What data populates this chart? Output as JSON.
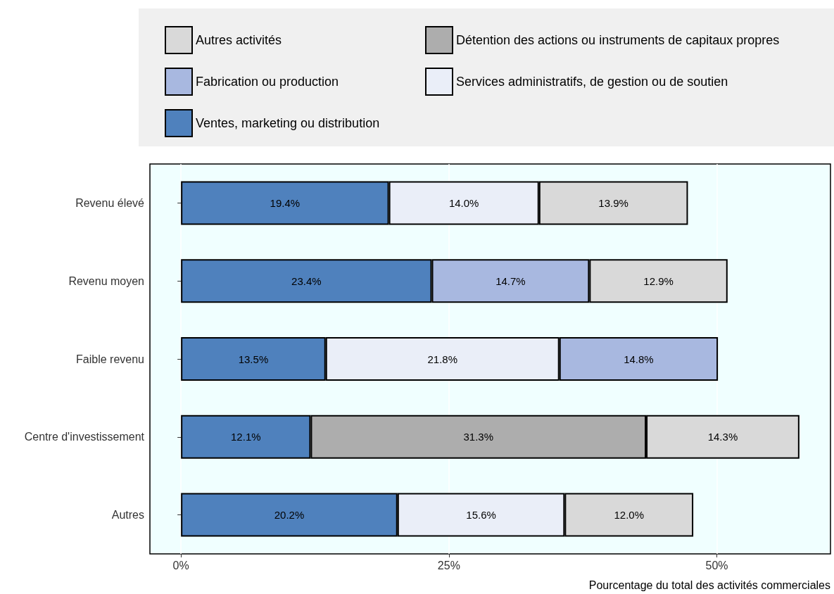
{
  "chart_data": {
    "type": "bar",
    "orientation": "horizontal",
    "stacked": true,
    "xlabel": "Pourcentage du total des activités commerciales",
    "categories": [
      "Revenu élevé",
      "Revenu moyen",
      "Faible revenu",
      "Centre d'investissement",
      "Autres"
    ],
    "series": [
      {
        "name": "Ventes, marketing ou distribution",
        "color": "#4f81bd",
        "values": [
          19.4,
          23.4,
          13.5,
          12.1,
          20.2
        ],
        "value_labels": [
          "19.4%",
          "23.4%",
          "13.5%",
          "12.1%",
          "20.2%"
        ]
      },
      {
        "name": "Services administratifs, de gestion ou de soutien",
        "color": "#eaeef8",
        "values": [
          14.0,
          null,
          21.8,
          null,
          15.6
        ],
        "value_labels": [
          "14.0%",
          null,
          "21.8%",
          null,
          "15.6%"
        ]
      },
      {
        "name": "Fabrication ou production",
        "color": "#a8b8e0",
        "values": [
          null,
          14.7,
          14.8,
          null,
          null
        ],
        "value_labels": [
          null,
          "14.7%",
          "14.8%",
          null,
          null
        ]
      },
      {
        "name": "Détention des actions ou instruments de capitaux propres",
        "color": "#adadad",
        "values": [
          null,
          null,
          null,
          31.3,
          null
        ],
        "value_labels": [
          null,
          null,
          null,
          "31.3%",
          null
        ]
      },
      {
        "name": "Autres activités",
        "color": "#d9d9d9",
        "values": [
          13.9,
          12.9,
          null,
          14.3,
          12.0
        ],
        "value_labels": [
          "13.9%",
          "12.9%",
          null,
          "14.3%",
          "12.0%"
        ]
      }
    ],
    "xlim": [
      -2.9,
      60.6
    ],
    "xticks": [
      {
        "value": 0,
        "label": "0%"
      },
      {
        "value": 25,
        "label": "25%"
      },
      {
        "value": 50,
        "label": "50%"
      }
    ],
    "grid": "x",
    "legend": "top"
  }
}
